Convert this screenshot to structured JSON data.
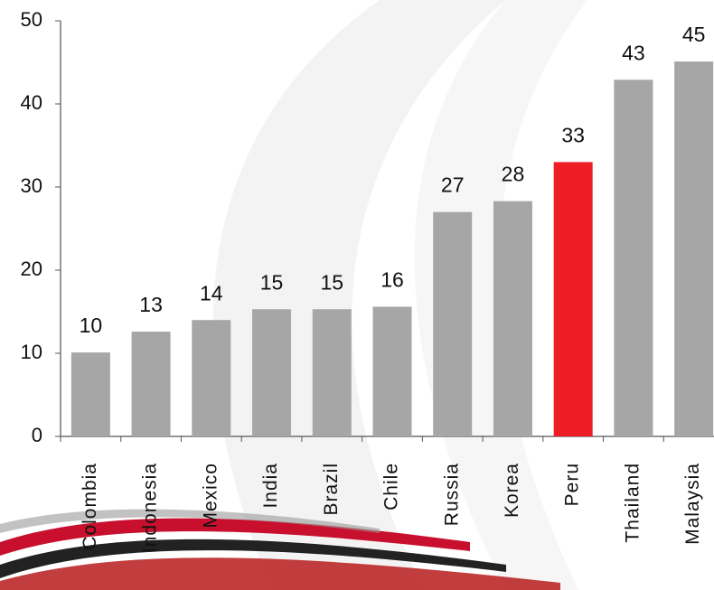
{
  "chart_data": {
    "type": "bar",
    "categories": [
      "Colombia",
      "Indonesia",
      "Mexico",
      "India",
      "Brazil",
      "Chile",
      "Russia",
      "Korea",
      "Peru",
      "Thailand",
      "Malaysia"
    ],
    "values": [
      10.1,
      12.6,
      14,
      15.3,
      15.3,
      15.6,
      27,
      28.3,
      33,
      42.9,
      45.1
    ],
    "value_labels": [
      "10",
      "13",
      "14",
      "15",
      "15",
      "16",
      "27",
      "28",
      "33",
      "43",
      "45"
    ],
    "colors": [
      "#a6a6a6",
      "#a6a6a6",
      "#a6a6a6",
      "#a6a6a6",
      "#a6a6a6",
      "#a6a6a6",
      "#a6a6a6",
      "#a6a6a6",
      "#ee1c24",
      "#a6a6a6",
      "#a6a6a6"
    ],
    "ylim": [
      0,
      50
    ],
    "yticks": [
      0,
      10,
      20,
      30,
      40,
      50
    ],
    "grid": false
  }
}
